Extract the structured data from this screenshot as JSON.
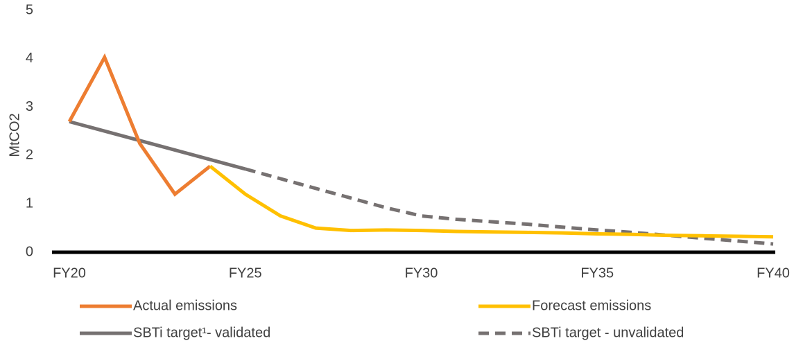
{
  "chart_data": {
    "type": "line",
    "title": "",
    "xlabel": "",
    "ylabel": "MtCO2",
    "xlim": [
      2020,
      2040
    ],
    "ylim": [
      0,
      5
    ],
    "y_ticks": [
      "0",
      "1",
      "2",
      "3",
      "4",
      "5"
    ],
    "x_ticks": [
      {
        "value": 2020,
        "label": "FY20"
      },
      {
        "value": 2025,
        "label": "FY25"
      },
      {
        "value": 2030,
        "label": "FY30"
      },
      {
        "value": 2035,
        "label": "FY35"
      },
      {
        "value": 2040,
        "label": "FY40"
      }
    ],
    "grid": false,
    "legend_position": "bottom",
    "series": [
      {
        "name": "Actual emissions",
        "color": "#ED7D31",
        "dash": false,
        "x": [
          2020,
          2021,
          2022,
          2023,
          2024
        ],
        "y": [
          2.7,
          4.03,
          2.25,
          1.2,
          1.78
        ]
      },
      {
        "name": "Forecast emissions",
        "color": "#FFC000",
        "dash": false,
        "x": [
          2024,
          2025,
          2026,
          2027,
          2028,
          2029,
          2030,
          2031,
          2032,
          2033,
          2034,
          2035,
          2036,
          2037,
          2038,
          2039,
          2040
        ],
        "y": [
          1.78,
          1.2,
          0.75,
          0.5,
          0.45,
          0.46,
          0.45,
          0.43,
          0.42,
          0.41,
          0.4,
          0.38,
          0.37,
          0.35,
          0.34,
          0.33,
          0.32
        ]
      },
      {
        "name": "SBTi target¹- validated",
        "color": "#767171",
        "dash": false,
        "x": [
          2020,
          2025
        ],
        "y": [
          2.7,
          1.72
        ]
      },
      {
        "name": "SBTi target - unvalidated",
        "color": "#767171",
        "dash": true,
        "x": [
          2025,
          2026,
          2027,
          2028,
          2029,
          2030,
          2031,
          2032,
          2033,
          2034,
          2035,
          2036,
          2037,
          2038,
          2039,
          2040
        ],
        "y": [
          1.72,
          1.52,
          1.32,
          1.12,
          0.92,
          0.75,
          0.68,
          0.63,
          0.58,
          0.52,
          0.46,
          0.41,
          0.35,
          0.29,
          0.23,
          0.17
        ]
      }
    ]
  }
}
